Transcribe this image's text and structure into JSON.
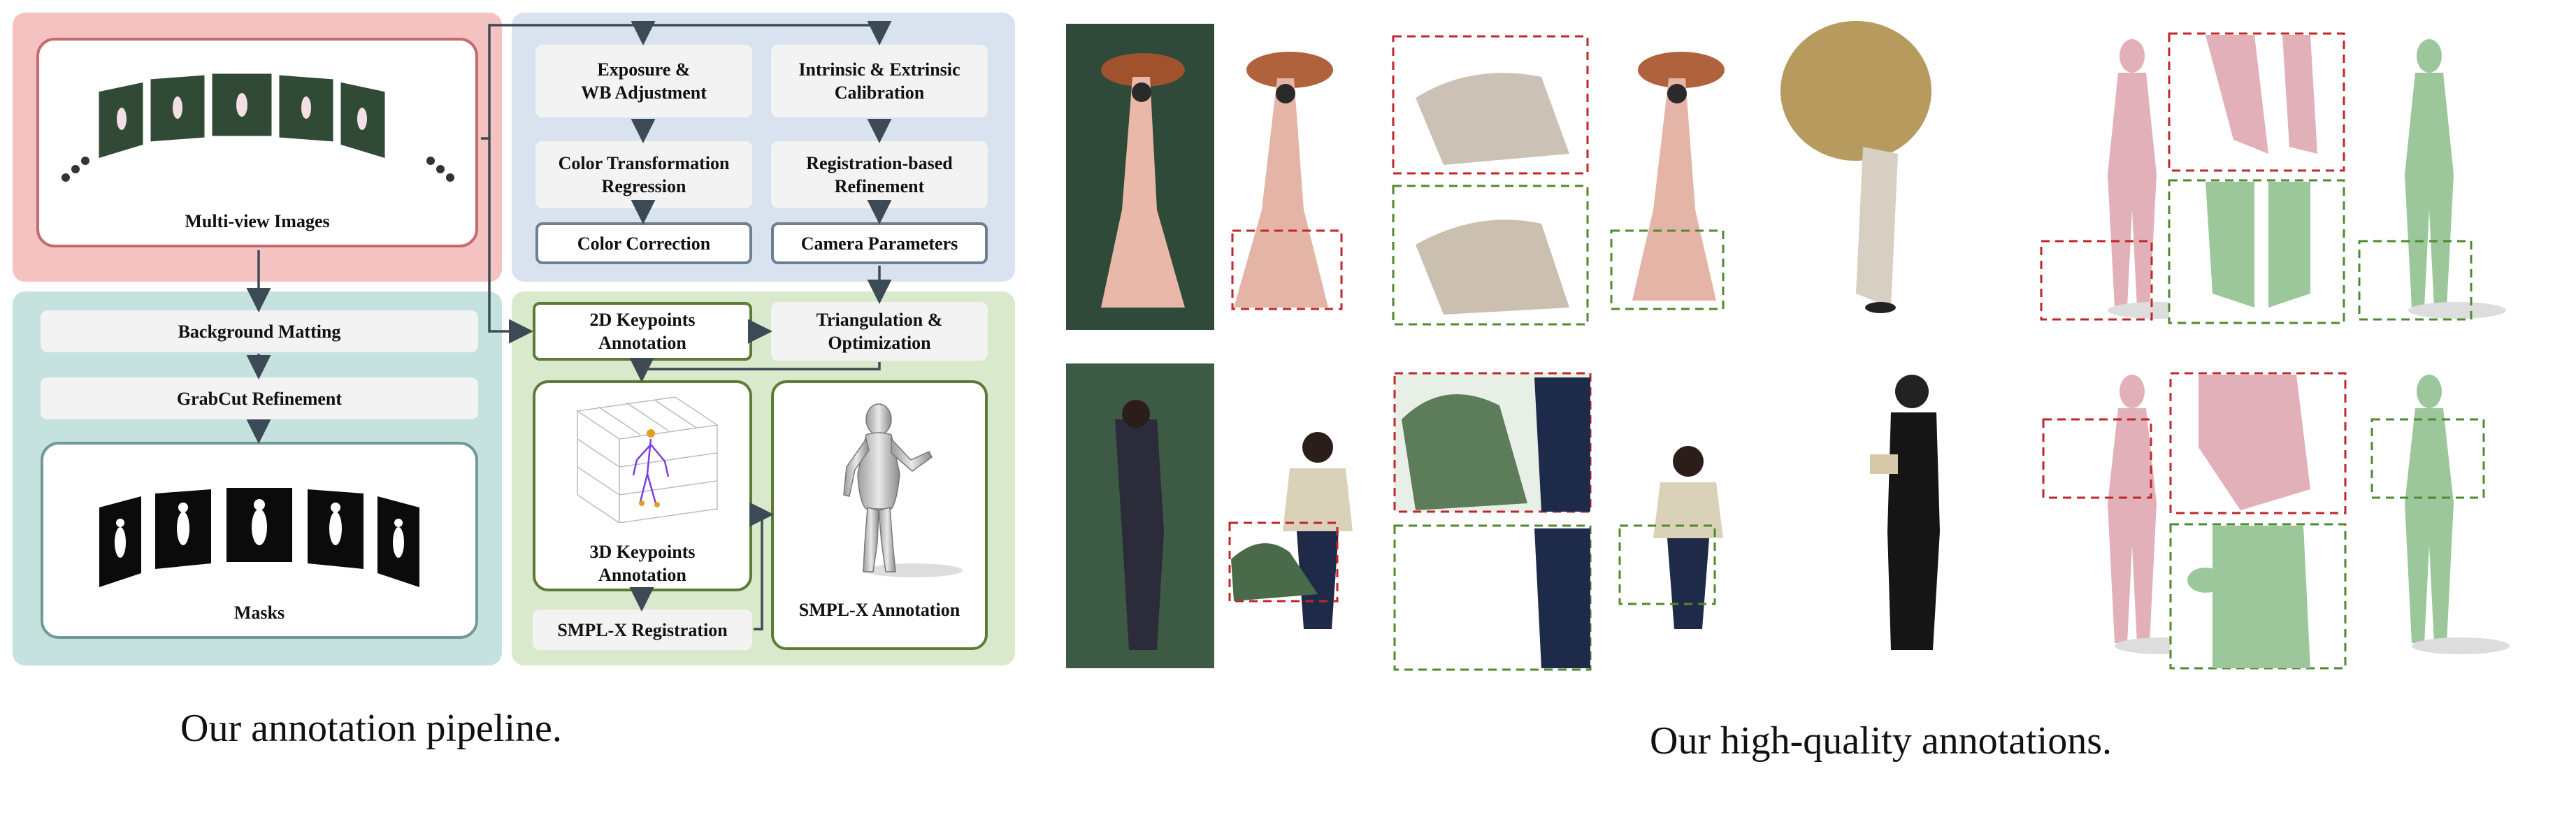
{
  "pipeline": {
    "caption": "Our annotation pipeline.",
    "multiview_label": "Multi-view Images",
    "masks_label": "Masks",
    "color": {
      "exposure": "Exposure &\nWB Adjustment",
      "transform": "Color Transformation\nRegression",
      "correction": "Color Correction"
    },
    "camera": {
      "calibration": "Intrinsic & Extrinsic\nCalibration",
      "refinement": "Registration-based\nRefinement",
      "parameters": "Camera Parameters"
    },
    "matting": {
      "background": "Background Matting",
      "grabcut": "GrabCut Refinement"
    },
    "smplx": {
      "keypoints2d": "2D Keypoints\nAnnotation",
      "triangulation": "Triangulation &\nOptimization",
      "keypoints3d": "3D Keypoints\nAnnotation",
      "registration": "SMPL-X Registration",
      "annotation": "SMPL-X Annotation"
    },
    "colors": {
      "red_panel": "#f4c3c1",
      "blue_panel": "#d9e3f0",
      "teal_panel": "#c6e2df",
      "green_panel": "#d9e9cc",
      "arrow": "#3c4a55"
    }
  },
  "annotations": {
    "caption": "Our high-quality annotations.",
    "colors": {
      "bad_box": "#c0262a",
      "good_box": "#4f8a2f",
      "bad_body": "#e2b0b8",
      "good_body": "#9bc79a"
    }
  }
}
